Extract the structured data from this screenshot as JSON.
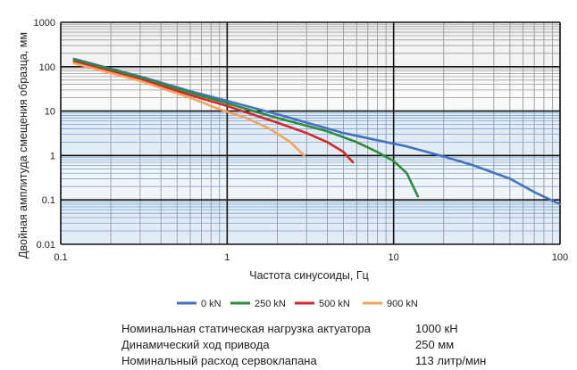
{
  "chart_data": {
    "type": "line",
    "xlabel": "Частота синусоиды, Гц",
    "ylabel": "Двойная амплитуда смещения образца, мм",
    "x_scale": "log",
    "y_scale": "log",
    "xlim": [
      0.1,
      100
    ],
    "ylim": [
      0.01,
      1000
    ],
    "x_ticks": [
      "0.1",
      "1",
      "10",
      "100"
    ],
    "y_ticks": [
      "0.01",
      "0.1",
      "1",
      "10",
      "100",
      "1000"
    ],
    "grid": true,
    "legend_position": "bottom",
    "series": [
      {
        "name": "0 kN",
        "color": "#4472c4",
        "x": [
          0.12,
          0.3,
          0.6,
          1.0,
          2.0,
          3.0,
          5.0,
          8.0,
          12.0,
          20.0,
          30.0,
          50.0,
          70.0,
          100.0
        ],
        "y": [
          150,
          60,
          28,
          17,
          8.5,
          5.5,
          3.2,
          2.2,
          1.6,
          0.95,
          0.6,
          0.3,
          0.15,
          0.08
        ]
      },
      {
        "name": "250 kN",
        "color": "#2e8b3d",
        "x": [
          0.12,
          0.3,
          0.6,
          1.0,
          2.0,
          4.0,
          6.0,
          8.0,
          10.0,
          12.0,
          14.0
        ],
        "y": [
          145,
          58,
          26,
          15,
          7.0,
          3.5,
          2.0,
          1.2,
          0.75,
          0.4,
          0.12
        ]
      },
      {
        "name": "500 kN",
        "color": "#d62728",
        "x": [
          0.12,
          0.3,
          0.6,
          1.0,
          2.0,
          3.0,
          4.0,
          5.0,
          5.7
        ],
        "y": [
          130,
          52,
          23,
          13,
          5.5,
          3.2,
          2.0,
          1.2,
          0.7
        ]
      },
      {
        "name": "900 kN",
        "color": "#f4a460",
        "x": [
          0.12,
          0.3,
          0.6,
          0.9,
          1.3,
          1.8,
          2.4,
          2.9
        ],
        "y": [
          120,
          48,
          20,
          11,
          7.0,
          4.0,
          2.0,
          1.0
        ]
      }
    ]
  },
  "specs": [
    {
      "label": "Номинальная статическая нагрузка актуатора",
      "value": "1000 кН"
    },
    {
      "label": "Динамический ход привода",
      "value": "250 мм"
    },
    {
      "label": "Номинальный расход сервоклапана",
      "value": "113 литр/мин"
    }
  ]
}
